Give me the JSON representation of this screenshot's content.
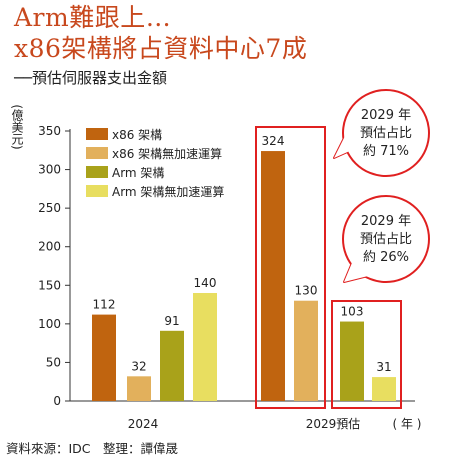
{
  "title_line1": "Arm難跟上…",
  "title_line2": "x86架構將占資料中心7成",
  "subtitle": "──預估伺服器支出金額",
  "source": "資料來源：IDC　整理：譚偉晟",
  "colors": {
    "accent": "#c8481d",
    "x86": "#c0640f",
    "x86_no_accel": "#e2b05c",
    "arm": "#a9a21a",
    "arm_no_accel": "#e8de60",
    "highlight_box": "#e02020"
  },
  "chart_data": {
    "type": "bar",
    "ylabel": "億美元",
    "xlabel": "年",
    "ylim": [
      0,
      350
    ],
    "yticks": [
      0,
      50,
      100,
      150,
      200,
      250,
      300,
      350
    ],
    "categories": [
      "2024",
      "2029預估"
    ],
    "series": [
      {
        "name": "x86 架構",
        "values": [
          112,
          324
        ]
      },
      {
        "name": "x86 架構無加速運算",
        "values": [
          32,
          130
        ]
      },
      {
        "name": "Arm 架構",
        "values": [
          91,
          103
        ]
      },
      {
        "name": "Arm 架構無加速運算",
        "values": [
          140,
          31
        ]
      }
    ],
    "legend_position": "top-left",
    "grid": false,
    "annotations": [
      {
        "text_line1": "2029 年",
        "text_line2": "預估占比",
        "text_line3": "約 71%"
      },
      {
        "text_line1": "2029 年",
        "text_line2": "預估占比",
        "text_line3": "約 26%"
      }
    ]
  }
}
